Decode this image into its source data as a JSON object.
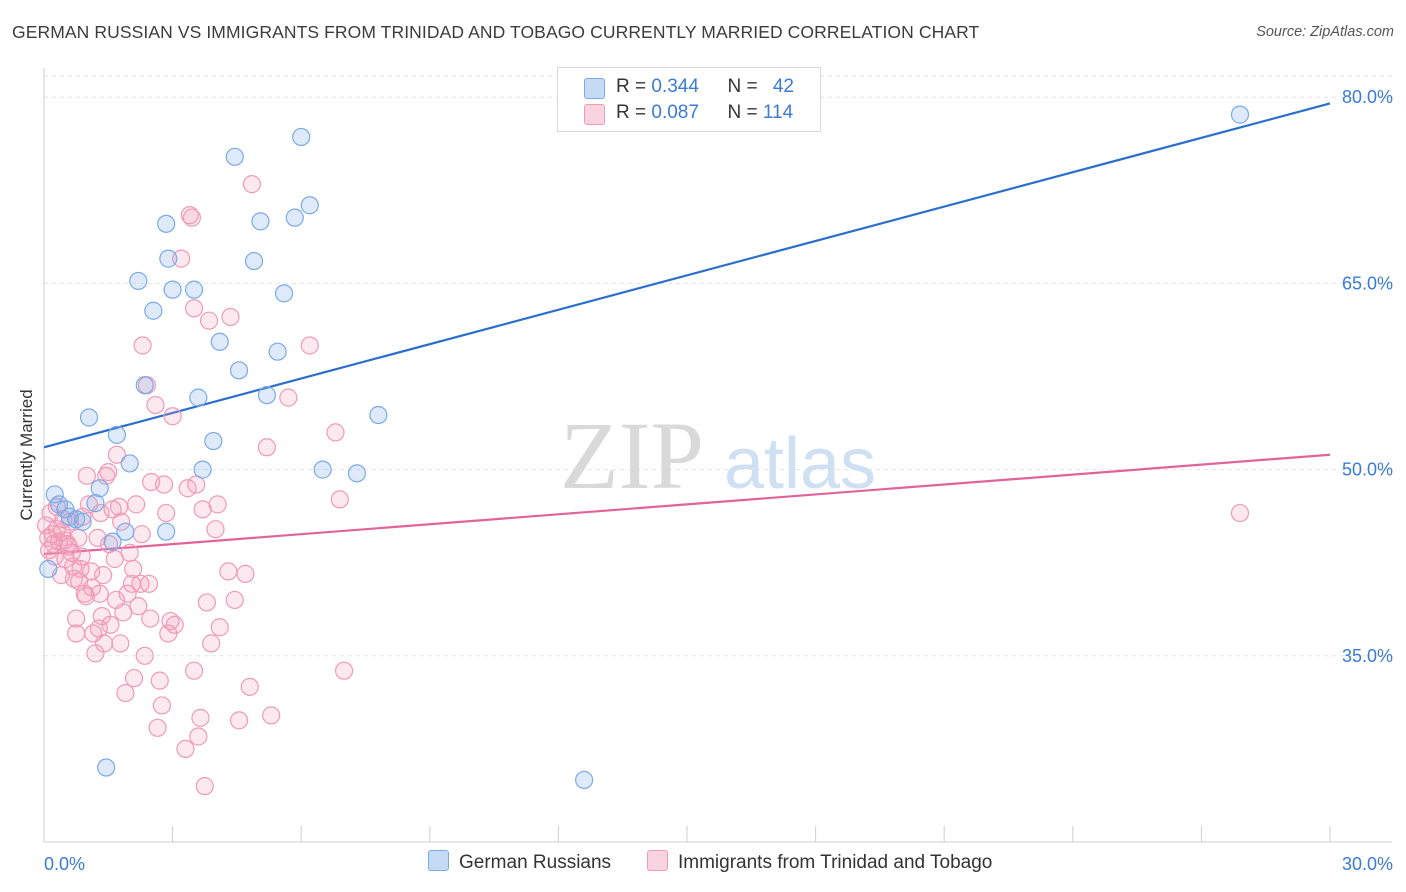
{
  "header": {
    "title": "GERMAN RUSSIAN VS IMMIGRANTS FROM TRINIDAD AND TOBAGO CURRENTLY MARRIED CORRELATION CHART",
    "source": "Source: ZipAtlas.com"
  },
  "watermark": {
    "zip": "ZIP",
    "atlas": "atlas"
  },
  "legend": {
    "series1": {
      "r_label": "R = ",
      "r_value": "0.344",
      "n_label": "N = ",
      "n_value": "42"
    },
    "series2": {
      "r_label": "R = ",
      "r_value": "0.087",
      "n_label": "N = ",
      "n_value": "114"
    }
  },
  "chart_data": {
    "type": "scatter",
    "title": "GERMAN RUSSIAN VS IMMIGRANTS FROM TRINIDAD AND TOBAGO CURRENTLY MARRIED CORRELATION CHART",
    "xlabel": "",
    "ylabel": "Currently Married",
    "xlim": [
      0,
      30
    ],
    "ylim": [
      20,
      83
    ],
    "x_tick_labels": [
      "0.0%",
      "30.0%"
    ],
    "y_ticks": [
      35,
      50,
      65,
      80
    ],
    "y_tick_labels": [
      "35.0%",
      "50.0%",
      "65.0%",
      "80.0%"
    ],
    "grid": true,
    "colors": {
      "german_russians": "#7aaae8",
      "german_russians_line": "#2b6fcc",
      "trinidad": "#f09ab8",
      "trinidad_line": "#e0649a",
      "axis_label": "#3a7bd5"
    },
    "series": [
      {
        "name": "German Russians",
        "r": 0.344,
        "n": 42,
        "trend": {
          "x": [
            0,
            30
          ],
          "y": [
            51.8,
            79.5
          ]
        },
        "points": [
          {
            "x": 0.1,
            "y": 42.0
          },
          {
            "x": 0.25,
            "y": 48.0
          },
          {
            "x": 0.35,
            "y": 47.2
          },
          {
            "x": 0.5,
            "y": 46.8
          },
          {
            "x": 0.6,
            "y": 46.2
          },
          {
            "x": 0.75,
            "y": 46.0
          },
          {
            "x": 0.9,
            "y": 45.8
          },
          {
            "x": 1.05,
            "y": 54.2
          },
          {
            "x": 1.2,
            "y": 47.3
          },
          {
            "x": 1.3,
            "y": 48.5
          },
          {
            "x": 1.45,
            "y": 26.0
          },
          {
            "x": 1.6,
            "y": 44.2
          },
          {
            "x": 1.7,
            "y": 52.8
          },
          {
            "x": 1.9,
            "y": 45.0
          },
          {
            "x": 2.0,
            "y": 50.5
          },
          {
            "x": 2.2,
            "y": 65.2
          },
          {
            "x": 2.35,
            "y": 56.8
          },
          {
            "x": 2.55,
            "y": 62.8
          },
          {
            "x": 2.85,
            "y": 69.8
          },
          {
            "x": 2.85,
            "y": 45.0
          },
          {
            "x": 2.9,
            "y": 67.0
          },
          {
            "x": 3.0,
            "y": 64.5
          },
          {
            "x": 3.5,
            "y": 64.5
          },
          {
            "x": 3.6,
            "y": 55.8
          },
          {
            "x": 3.7,
            "y": 50.0
          },
          {
            "x": 3.95,
            "y": 52.3
          },
          {
            "x": 4.1,
            "y": 60.3
          },
          {
            "x": 4.45,
            "y": 75.2
          },
          {
            "x": 4.55,
            "y": 58.0
          },
          {
            "x": 4.9,
            "y": 66.8
          },
          {
            "x": 5.05,
            "y": 70.0
          },
          {
            "x": 5.2,
            "y": 56.0
          },
          {
            "x": 5.45,
            "y": 59.5
          },
          {
            "x": 5.6,
            "y": 64.2
          },
          {
            "x": 5.85,
            "y": 70.3
          },
          {
            "x": 6.0,
            "y": 76.8
          },
          {
            "x": 6.2,
            "y": 71.3
          },
          {
            "x": 6.5,
            "y": 50.0
          },
          {
            "x": 7.3,
            "y": 49.7
          },
          {
            "x": 7.8,
            "y": 54.4
          },
          {
            "x": 12.6,
            "y": 25.0
          },
          {
            "x": 27.9,
            "y": 78.6
          }
        ]
      },
      {
        "name": "Immigrants from Trinidad and Tobago",
        "r": 0.087,
        "n": 114,
        "trend": {
          "x": [
            0,
            30
          ],
          "y": [
            43.2,
            51.2
          ]
        },
        "points": [
          {
            "x": 0.05,
            "y": 45.5
          },
          {
            "x": 0.1,
            "y": 44.5
          },
          {
            "x": 0.12,
            "y": 43.5
          },
          {
            "x": 0.15,
            "y": 46.5
          },
          {
            "x": 0.2,
            "y": 44.8
          },
          {
            "x": 0.25,
            "y": 43.0
          },
          {
            "x": 0.3,
            "y": 45.2
          },
          {
            "x": 0.35,
            "y": 44.2
          },
          {
            "x": 0.4,
            "y": 41.5
          },
          {
            "x": 0.45,
            "y": 46.0
          },
          {
            "x": 0.5,
            "y": 42.8
          },
          {
            "x": 0.55,
            "y": 44.0
          },
          {
            "x": 0.6,
            "y": 45.8
          },
          {
            "x": 0.65,
            "y": 43.3
          },
          {
            "x": 0.7,
            "y": 41.2
          },
          {
            "x": 0.75,
            "y": 38.0
          },
          {
            "x": 0.75,
            "y": 36.8
          },
          {
            "x": 0.8,
            "y": 44.5
          },
          {
            "x": 0.85,
            "y": 42.0
          },
          {
            "x": 0.9,
            "y": 46.2
          },
          {
            "x": 0.95,
            "y": 40.0
          },
          {
            "x": 1.0,
            "y": 49.5
          },
          {
            "x": 1.05,
            "y": 47.2
          },
          {
            "x": 1.1,
            "y": 41.8
          },
          {
            "x": 1.15,
            "y": 36.8
          },
          {
            "x": 1.2,
            "y": 35.2
          },
          {
            "x": 1.25,
            "y": 44.5
          },
          {
            "x": 1.3,
            "y": 40.0
          },
          {
            "x": 1.35,
            "y": 38.2
          },
          {
            "x": 1.4,
            "y": 36.0
          },
          {
            "x": 1.45,
            "y": 49.5
          },
          {
            "x": 1.5,
            "y": 49.8
          },
          {
            "x": 1.55,
            "y": 37.5
          },
          {
            "x": 1.6,
            "y": 46.8
          },
          {
            "x": 1.65,
            "y": 42.8
          },
          {
            "x": 1.7,
            "y": 51.2
          },
          {
            "x": 1.75,
            "y": 47.0
          },
          {
            "x": 1.8,
            "y": 45.8
          },
          {
            "x": 1.85,
            "y": 38.5
          },
          {
            "x": 1.9,
            "y": 32.0
          },
          {
            "x": 1.95,
            "y": 40.0
          },
          {
            "x": 2.0,
            "y": 43.3
          },
          {
            "x": 2.05,
            "y": 40.8
          },
          {
            "x": 2.1,
            "y": 33.2
          },
          {
            "x": 2.15,
            "y": 47.2
          },
          {
            "x": 2.2,
            "y": 39.0
          },
          {
            "x": 2.25,
            "y": 40.8
          },
          {
            "x": 2.3,
            "y": 60.0
          },
          {
            "x": 2.35,
            "y": 35.0
          },
          {
            "x": 2.4,
            "y": 56.8
          },
          {
            "x": 2.45,
            "y": 40.8
          },
          {
            "x": 2.5,
            "y": 49.0
          },
          {
            "x": 2.6,
            "y": 55.2
          },
          {
            "x": 2.65,
            "y": 29.2
          },
          {
            "x": 2.7,
            "y": 33.0
          },
          {
            "x": 2.75,
            "y": 31.0
          },
          {
            "x": 2.8,
            "y": 48.8
          },
          {
            "x": 2.85,
            "y": 46.5
          },
          {
            "x": 2.9,
            "y": 36.8
          },
          {
            "x": 2.95,
            "y": 37.8
          },
          {
            "x": 3.0,
            "y": 54.3
          },
          {
            "x": 3.05,
            "y": 37.5
          },
          {
            "x": 3.2,
            "y": 67.0
          },
          {
            "x": 3.3,
            "y": 27.5
          },
          {
            "x": 3.35,
            "y": 48.5
          },
          {
            "x": 3.4,
            "y": 70.5
          },
          {
            "x": 3.45,
            "y": 70.3
          },
          {
            "x": 3.5,
            "y": 63.0
          },
          {
            "x": 3.5,
            "y": 33.8
          },
          {
            "x": 3.55,
            "y": 48.8
          },
          {
            "x": 3.6,
            "y": 28.5
          },
          {
            "x": 3.65,
            "y": 30.0
          },
          {
            "x": 3.7,
            "y": 46.8
          },
          {
            "x": 3.75,
            "y": 24.5
          },
          {
            "x": 3.8,
            "y": 39.3
          },
          {
            "x": 3.85,
            "y": 62.0
          },
          {
            "x": 3.9,
            "y": 36.0
          },
          {
            "x": 4.0,
            "y": 45.2
          },
          {
            "x": 4.05,
            "y": 47.2
          },
          {
            "x": 4.1,
            "y": 37.3
          },
          {
            "x": 4.3,
            "y": 41.8
          },
          {
            "x": 4.35,
            "y": 62.3
          },
          {
            "x": 4.45,
            "y": 39.5
          },
          {
            "x": 4.55,
            "y": 29.8
          },
          {
            "x": 4.7,
            "y": 41.6
          },
          {
            "x": 4.8,
            "y": 32.5
          },
          {
            "x": 4.85,
            "y": 73.0
          },
          {
            "x": 5.2,
            "y": 51.8
          },
          {
            "x": 5.3,
            "y": 30.2
          },
          {
            "x": 5.7,
            "y": 55.8
          },
          {
            "x": 6.2,
            "y": 60.0
          },
          {
            "x": 6.8,
            "y": 53.0
          },
          {
            "x": 6.9,
            "y": 47.6
          },
          {
            "x": 7.0,
            "y": 33.8
          },
          {
            "x": 0.3,
            "y": 47.0
          },
          {
            "x": 0.42,
            "y": 45.0
          },
          {
            "x": 0.58,
            "y": 43.8
          },
          {
            "x": 0.68,
            "y": 42.2
          },
          {
            "x": 0.82,
            "y": 41.0
          },
          {
            "x": 0.98,
            "y": 39.8
          },
          {
            "x": 1.12,
            "y": 40.5
          },
          {
            "x": 1.28,
            "y": 37.2
          },
          {
            "x": 1.38,
            "y": 41.5
          },
          {
            "x": 1.52,
            "y": 44.0
          },
          {
            "x": 1.68,
            "y": 39.5
          },
          {
            "x": 1.78,
            "y": 36.0
          },
          {
            "x": 2.08,
            "y": 42.0
          },
          {
            "x": 2.28,
            "y": 44.8
          },
          {
            "x": 2.48,
            "y": 38.0
          },
          {
            "x": 1.32,
            "y": 46.5
          },
          {
            "x": 27.9,
            "y": 46.5
          },
          {
            "x": 0.22,
            "y": 44.0
          },
          {
            "x": 0.48,
            "y": 44.3
          },
          {
            "x": 0.88,
            "y": 43.0
          }
        ]
      }
    ]
  },
  "bottom_legend": {
    "item1": "German Russians",
    "item2": "Immigrants from Trinidad and Tobago"
  }
}
